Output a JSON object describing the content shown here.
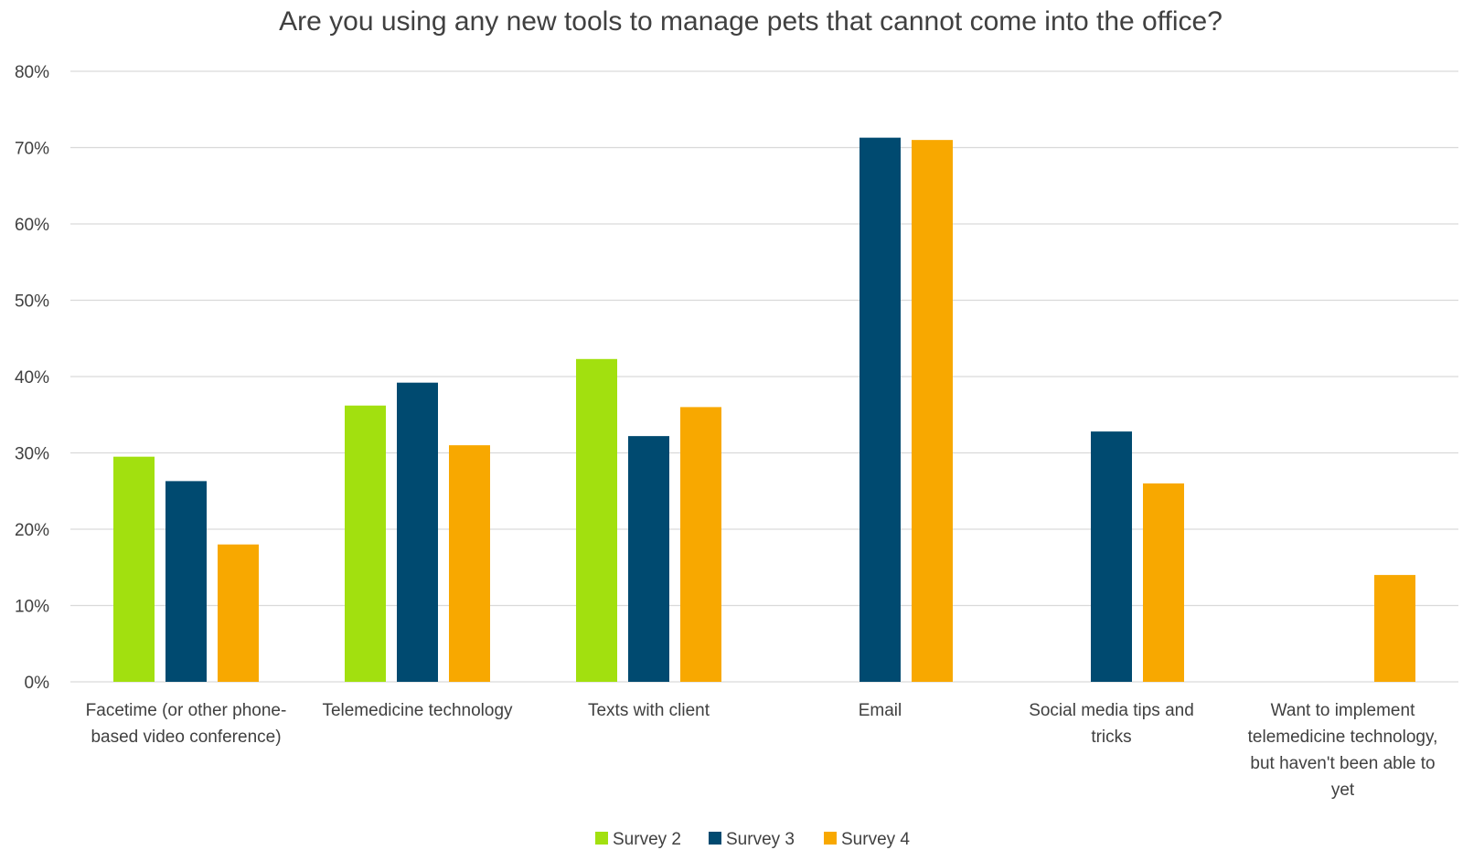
{
  "chart_data": {
    "type": "bar",
    "title": "Are you using any new tools to manage pets that cannot come into the office?",
    "xlabel": "",
    "ylabel": "",
    "ylim": [
      0,
      0.8
    ],
    "y_ticks": [
      "0%",
      "10%",
      "20%",
      "30%",
      "40%",
      "50%",
      "60%",
      "70%",
      "80%"
    ],
    "grid": true,
    "legend_position": "bottom",
    "categories": [
      "Facetime (or other phone-based video conference)",
      "Telemedicine technology",
      "Texts with client",
      "Email",
      "Social media tips and tricks",
      "Want to implement telemedicine technology, but haven't been able to yet"
    ],
    "category_lines": [
      [
        "Facetime (or other phone-",
        "based video conference)"
      ],
      [
        "Telemedicine technology"
      ],
      [
        "Texts with client"
      ],
      [
        "Email"
      ],
      [
        "Social media tips and",
        "tricks"
      ],
      [
        "Want to implement",
        "telemedicine technology,",
        "but haven't been able to",
        "yet"
      ]
    ],
    "series": [
      {
        "name": "Survey 2",
        "color": "#a2e00f",
        "values": [
          0.295,
          0.362,
          0.423,
          null,
          null,
          null
        ]
      },
      {
        "name": "Survey 3",
        "color": "#004a70",
        "values": [
          0.263,
          0.392,
          0.322,
          0.713,
          0.328,
          null
        ]
      },
      {
        "name": "Survey 4",
        "color": "#f8a800",
        "values": [
          0.18,
          0.31,
          0.36,
          0.71,
          0.26,
          0.14
        ]
      }
    ]
  }
}
